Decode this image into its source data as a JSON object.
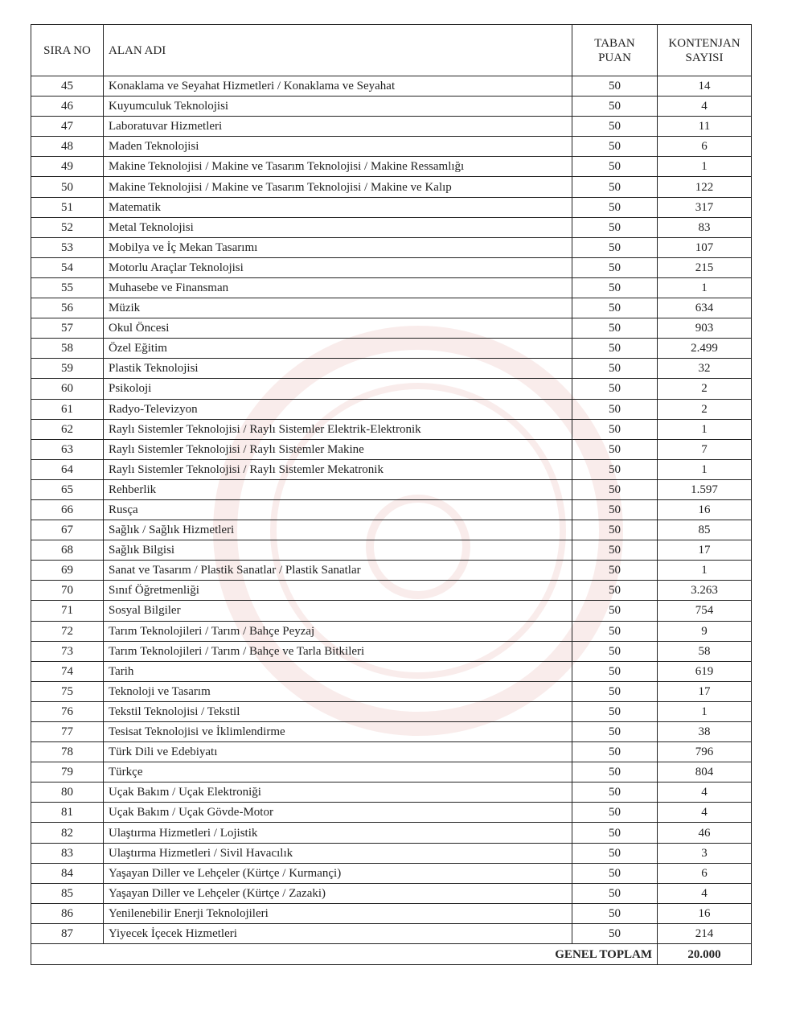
{
  "header": {
    "sira_no": "SIRA NO",
    "alan_adi": "ALAN ADI",
    "taban_puan": "TABAN PUAN",
    "kontenjan_sayisi": "KONTENJAN SAYISI"
  },
  "rows": [
    [
      "45",
      "Konaklama ve Seyahat Hizmetleri / Konaklama ve Seyahat",
      "50",
      "14"
    ],
    [
      "46",
      "Kuyumculuk Teknolojisi",
      "50",
      "4"
    ],
    [
      "47",
      "Laboratuvar Hizmetleri",
      "50",
      "11"
    ],
    [
      "48",
      "Maden Teknolojisi",
      "50",
      "6"
    ],
    [
      "49",
      "Makine Teknolojisi / Makine ve Tasarım Teknolojisi / Makine Ressamlığı",
      "50",
      "1"
    ],
    [
      "50",
      "Makine Teknolojisi / Makine ve Tasarım Teknolojisi / Makine ve Kalıp",
      "50",
      "122"
    ],
    [
      "51",
      "Matematik",
      "50",
      "317"
    ],
    [
      "52",
      "Metal Teknolojisi",
      "50",
      "83"
    ],
    [
      "53",
      "Mobilya ve İç Mekan Tasarımı",
      "50",
      "107"
    ],
    [
      "54",
      "Motorlu Araçlar Teknolojisi",
      "50",
      "215"
    ],
    [
      "55",
      "Muhasebe ve Finansman",
      "50",
      "1"
    ],
    [
      "56",
      "Müzik",
      "50",
      "634"
    ],
    [
      "57",
      "Okul Öncesi",
      "50",
      "903"
    ],
    [
      "58",
      "Özel Eğitim",
      "50",
      "2.499"
    ],
    [
      "59",
      "Plastik Teknolojisi",
      "50",
      "32"
    ],
    [
      "60",
      "Psikoloji",
      "50",
      "2"
    ],
    [
      "61",
      "Radyo-Televizyon",
      "50",
      "2"
    ],
    [
      "62",
      "Raylı Sistemler Teknolojisi / Raylı Sistemler Elektrik-Elektronik",
      "50",
      "1"
    ],
    [
      "63",
      "Raylı Sistemler Teknolojisi / Raylı Sistemler Makine",
      "50",
      "7"
    ],
    [
      "64",
      "Raylı Sistemler Teknolojisi / Raylı Sistemler Mekatronik",
      "50",
      "1"
    ],
    [
      "65",
      "Rehberlik",
      "50",
      "1.597"
    ],
    [
      "66",
      "Rusça",
      "50",
      "16"
    ],
    [
      "67",
      "Sağlık / Sağlık Hizmetleri",
      "50",
      "85"
    ],
    [
      "68",
      "Sağlık Bilgisi",
      "50",
      "17"
    ],
    [
      "69",
      "Sanat ve Tasarım / Plastik Sanatlar / Plastik Sanatlar",
      "50",
      "1"
    ],
    [
      "70",
      "Sınıf Öğretmenliği",
      "50",
      "3.263"
    ],
    [
      "71",
      "Sosyal Bilgiler",
      "50",
      "754"
    ],
    [
      "72",
      "Tarım Teknolojileri / Tarım / Bahçe Peyzaj",
      "50",
      "9"
    ],
    [
      "73",
      "Tarım Teknolojileri / Tarım / Bahçe ve Tarla Bitkileri",
      "50",
      "58"
    ],
    [
      "74",
      "Tarih",
      "50",
      "619"
    ],
    [
      "75",
      "Teknoloji ve Tasarım",
      "50",
      "17"
    ],
    [
      "76",
      "Tekstil Teknolojisi / Tekstil",
      "50",
      "1"
    ],
    [
      "77",
      "Tesisat Teknolojisi ve İklimlendirme",
      "50",
      "38"
    ],
    [
      "78",
      "Türk Dili ve Edebiyatı",
      "50",
      "796"
    ],
    [
      "79",
      "Türkçe",
      "50",
      "804"
    ],
    [
      "80",
      "Uçak Bakım / Uçak Elektroniği",
      "50",
      "4"
    ],
    [
      "81",
      "Uçak Bakım / Uçak Gövde-Motor",
      "50",
      "4"
    ],
    [
      "82",
      "Ulaştırma Hizmetleri / Lojistik",
      "50",
      "46"
    ],
    [
      "83",
      "Ulaştırma Hizmetleri / Sivil Havacılık",
      "50",
      "3"
    ],
    [
      "84",
      "Yaşayan Diller ve Lehçeler (Kürtçe / Kurmançi)",
      "50",
      "6"
    ],
    [
      "85",
      "Yaşayan Diller ve Lehçeler (Kürtçe / Zazaki)",
      "50",
      "4"
    ],
    [
      "86",
      "Yenilenebilir Enerji Teknolojileri",
      "50",
      "16"
    ],
    [
      "87",
      "Yiyecek İçecek Hizmetleri",
      "50",
      "214"
    ]
  ],
  "total": {
    "label": "GENEL TOPLAM",
    "value": "20.000"
  },
  "watermark_color": "#c0392b"
}
